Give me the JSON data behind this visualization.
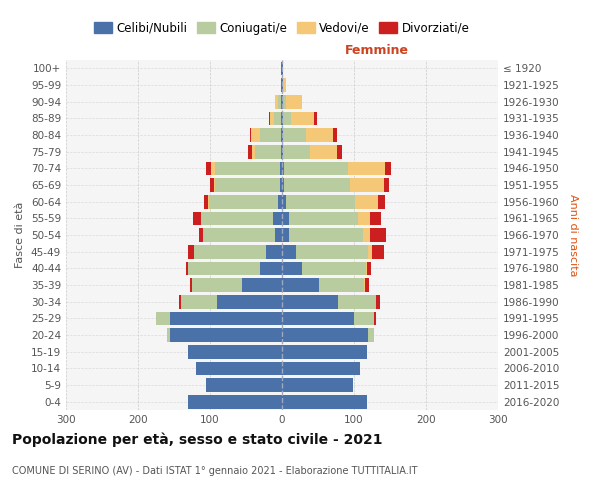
{
  "age_groups": [
    "0-4",
    "5-9",
    "10-14",
    "15-19",
    "20-24",
    "25-29",
    "30-34",
    "35-39",
    "40-44",
    "45-49",
    "50-54",
    "55-59",
    "60-64",
    "65-69",
    "70-74",
    "75-79",
    "80-84",
    "85-89",
    "90-94",
    "95-99",
    "100+"
  ],
  "birth_years": [
    "2016-2020",
    "2011-2015",
    "2006-2010",
    "2001-2005",
    "1996-2000",
    "1991-1995",
    "1986-1990",
    "1981-1985",
    "1976-1980",
    "1971-1975",
    "1966-1970",
    "1961-1965",
    "1956-1960",
    "1951-1955",
    "1946-1950",
    "1941-1945",
    "1936-1940",
    "1931-1935",
    "1926-1930",
    "1921-1925",
    "≤ 1920"
  ],
  "males": {
    "celibi": [
      130,
      105,
      120,
      130,
      155,
      155,
      90,
      55,
      30,
      22,
      10,
      12,
      6,
      3,
      3,
      2,
      1,
      1,
      1,
      1,
      1
    ],
    "coniugati": [
      0,
      0,
      0,
      0,
      5,
      20,
      50,
      70,
      100,
      100,
      100,
      100,
      95,
      90,
      90,
      35,
      30,
      10,
      4,
      1,
      0
    ],
    "vedovi": [
      0,
      0,
      0,
      0,
      0,
      0,
      0,
      0,
      0,
      0,
      0,
      0,
      2,
      2,
      5,
      5,
      12,
      5,
      5,
      0,
      0
    ],
    "divorziati": [
      0,
      0,
      0,
      0,
      0,
      0,
      3,
      3,
      3,
      8,
      5,
      12,
      6,
      5,
      8,
      5,
      2,
      2,
      0,
      0,
      0
    ]
  },
  "females": {
    "nubili": [
      118,
      98,
      108,
      118,
      120,
      100,
      78,
      52,
      28,
      20,
      10,
      10,
      6,
      3,
      3,
      1,
      1,
      1,
      1,
      1,
      1
    ],
    "coniugate": [
      0,
      0,
      0,
      0,
      8,
      28,
      52,
      62,
      88,
      100,
      102,
      96,
      96,
      92,
      88,
      38,
      32,
      12,
      5,
      1,
      0
    ],
    "vedove": [
      0,
      0,
      0,
      0,
      0,
      0,
      0,
      1,
      2,
      5,
      10,
      16,
      32,
      46,
      52,
      38,
      38,
      32,
      22,
      4,
      0
    ],
    "divorziate": [
      0,
      0,
      0,
      0,
      0,
      2,
      6,
      6,
      6,
      16,
      22,
      16,
      9,
      7,
      9,
      6,
      6,
      3,
      0,
      0,
      0
    ]
  },
  "colors": {
    "celibi": "#4a72a8",
    "coniugati": "#b8cca0",
    "vedovi": "#f5c878",
    "divorziati": "#cc2020"
  },
  "title": "Popolazione per età, sesso e stato civile - 2021",
  "subtitle": "COMUNE DI SERINO (AV) - Dati ISTAT 1° gennaio 2021 - Elaborazione TUTTITALIA.IT",
  "femmine_label": "Femmine",
  "ylabel_left": "Fasce di età",
  "ylabel_right": "Anni di nascita",
  "xlim": 300,
  "legend_labels": [
    "Celibi/Nubili",
    "Coniugati/e",
    "Vedovi/e",
    "Divorziati/e"
  ],
  "bg_color": "#f5f5f5",
  "grid_color": "#c8c8c8"
}
